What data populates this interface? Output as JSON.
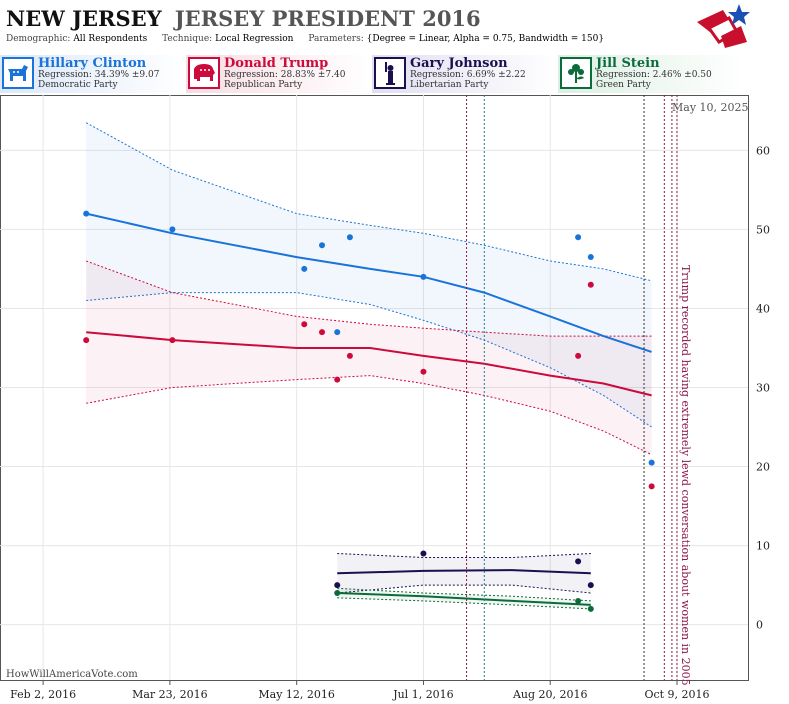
{
  "header": {
    "state": "NEW JERSEY",
    "race": "JERSEY PRESIDENT 2016",
    "params": [
      {
        "key": "Demographic:",
        "value": "All Respondents"
      },
      {
        "key": "Technique:",
        "value": "Local Regression"
      },
      {
        "key": "Parameters:",
        "value": "{Degree = Linear, Alpha = 0.75, Bandwidth = 150}"
      }
    ]
  },
  "date_stamp": "May 10, 2025",
  "watermark": "HowWillAmericaVote.com",
  "colors": {
    "clinton": "#1a73d9",
    "trump": "#cc0a3c",
    "johnson": "#1a1050",
    "stein": "#0b6b3a",
    "logo_red": "#c8102e",
    "logo_blue": "#1a4fb3"
  },
  "candidates": [
    {
      "name": "Hillary Clinton",
      "regression": "Regression: 34.39% ±9.07",
      "party": "Democratic Party",
      "icon": "donkey-icon",
      "color": "#1a73d9"
    },
    {
      "name": "Donald Trump",
      "regression": "Regression: 28.83% ±7.40",
      "party": "Republican Party",
      "icon": "elephant-icon",
      "color": "#cc0a3c"
    },
    {
      "name": "Gary Johnson",
      "regression": "Regression: 6.69% ±2.22",
      "party": "Libertarian Party",
      "icon": "liberty-icon",
      "color": "#1a1050"
    },
    {
      "name": "Jill Stein",
      "regression": "Regression: 2.46% ±0.50",
      "party": "Green Party",
      "icon": "flower-icon",
      "color": "#0b6b3a"
    }
  ],
  "chart_data": {
    "type": "scatter",
    "x_ticks": [
      "Feb 2, 2016",
      "Mar 23, 2016",
      "May 12, 2016",
      "Jul 1, 2016",
      "Aug 20, 2016",
      "Oct 9, 2016"
    ],
    "x_range": [
      "2016-01-16",
      "2016-11-06"
    ],
    "y_ticks": [
      0,
      10,
      20,
      30,
      40,
      50,
      60
    ],
    "y_range": [
      -7,
      67
    ],
    "grid": true,
    "annotation": "Trump recorded having extremely lewd conversation about women in 2005",
    "event_lines": [
      {
        "date": "2016-07-18",
        "style": "dotted",
        "color": "#8b1a4a"
      },
      {
        "date": "2016-07-25",
        "style": "dotted",
        "color": "#1a7d8b"
      },
      {
        "date": "2016-09-26",
        "style": "dotted",
        "color": "#333333"
      },
      {
        "date": "2016-10-04",
        "style": "dotted",
        "color": "#8b1a4a"
      },
      {
        "date": "2016-10-07",
        "style": "dotted",
        "color": "#8b1a4a"
      },
      {
        "date": "2016-10-09",
        "style": "dotted",
        "color": "#8b1a4a"
      }
    ],
    "series": [
      {
        "name": "Hillary Clinton",
        "color": "#1a73d9",
        "points": [
          [
            "2016-02-19",
            52
          ],
          [
            "2016-03-24",
            50
          ],
          [
            "2016-05-15",
            45
          ],
          [
            "2016-05-22",
            48
          ],
          [
            "2016-05-28",
            37
          ],
          [
            "2016-06-02",
            49
          ],
          [
            "2016-07-01",
            44
          ],
          [
            "2016-08-31",
            49
          ],
          [
            "2016-09-05",
            46.5
          ],
          [
            "2016-09-29",
            20.5
          ]
        ],
        "fit": [
          [
            "2016-02-19",
            52
          ],
          [
            "2016-03-24",
            49.5
          ],
          [
            "2016-05-12",
            46.5
          ],
          [
            "2016-06-10",
            45
          ],
          [
            "2016-07-01",
            44
          ],
          [
            "2016-07-25",
            42
          ],
          [
            "2016-08-20",
            39
          ],
          [
            "2016-09-10",
            36.5
          ],
          [
            "2016-09-29",
            34.5
          ]
        ],
        "upper": [
          [
            "2016-02-19",
            63.5
          ],
          [
            "2016-03-24",
            57.5
          ],
          [
            "2016-05-12",
            52
          ],
          [
            "2016-06-10",
            50.5
          ],
          [
            "2016-07-01",
            49.5
          ],
          [
            "2016-07-25",
            48
          ],
          [
            "2016-08-20",
            46
          ],
          [
            "2016-09-10",
            45
          ],
          [
            "2016-09-29",
            43.5
          ]
        ],
        "lower": [
          [
            "2016-02-19",
            41
          ],
          [
            "2016-03-24",
            42
          ],
          [
            "2016-05-12",
            42
          ],
          [
            "2016-06-10",
            40.5
          ],
          [
            "2016-07-01",
            38.5
          ],
          [
            "2016-07-25",
            36
          ],
          [
            "2016-08-20",
            32.5
          ],
          [
            "2016-09-10",
            29
          ],
          [
            "2016-09-29",
            25
          ]
        ]
      },
      {
        "name": "Donald Trump",
        "color": "#cc0a3c",
        "points": [
          [
            "2016-02-19",
            36
          ],
          [
            "2016-03-24",
            36
          ],
          [
            "2016-05-15",
            38
          ],
          [
            "2016-05-22",
            37
          ],
          [
            "2016-05-28",
            31
          ],
          [
            "2016-06-02",
            34
          ],
          [
            "2016-07-01",
            32
          ],
          [
            "2016-08-31",
            34
          ],
          [
            "2016-09-05",
            43
          ],
          [
            "2016-09-29",
            17.5
          ]
        ],
        "fit": [
          [
            "2016-02-19",
            37
          ],
          [
            "2016-03-24",
            36
          ],
          [
            "2016-05-12",
            35
          ],
          [
            "2016-06-10",
            35
          ],
          [
            "2016-07-01",
            34
          ],
          [
            "2016-07-25",
            33
          ],
          [
            "2016-08-20",
            31.5
          ],
          [
            "2016-09-10",
            30.5
          ],
          [
            "2016-09-29",
            29
          ]
        ],
        "upper": [
          [
            "2016-02-19",
            46
          ],
          [
            "2016-03-24",
            42
          ],
          [
            "2016-05-12",
            39
          ],
          [
            "2016-06-10",
            38
          ],
          [
            "2016-07-01",
            37.5
          ],
          [
            "2016-07-25",
            37
          ],
          [
            "2016-08-20",
            36.5
          ],
          [
            "2016-09-10",
            36.5
          ],
          [
            "2016-09-29",
            36.5
          ]
        ],
        "lower": [
          [
            "2016-02-19",
            28
          ],
          [
            "2016-03-24",
            30
          ],
          [
            "2016-05-12",
            31
          ],
          [
            "2016-06-10",
            31.5
          ],
          [
            "2016-07-01",
            30.5
          ],
          [
            "2016-07-25",
            29
          ],
          [
            "2016-08-20",
            27
          ],
          [
            "2016-09-10",
            24.5
          ],
          [
            "2016-09-29",
            21.5
          ]
        ]
      },
      {
        "name": "Gary Johnson",
        "color": "#1a1050",
        "points": [
          [
            "2016-05-28",
            5
          ],
          [
            "2016-07-01",
            9
          ],
          [
            "2016-08-31",
            8
          ],
          [
            "2016-09-05",
            5
          ]
        ],
        "fit": [
          [
            "2016-05-28",
            6.5
          ],
          [
            "2016-07-01",
            6.8
          ],
          [
            "2016-08-05",
            6.9
          ],
          [
            "2016-09-05",
            6.5
          ]
        ],
        "upper": [
          [
            "2016-05-28",
            9
          ],
          [
            "2016-07-01",
            8.5
          ],
          [
            "2016-08-05",
            8.5
          ],
          [
            "2016-09-05",
            9
          ]
        ],
        "lower": [
          [
            "2016-05-28",
            4
          ],
          [
            "2016-07-01",
            5
          ],
          [
            "2016-08-05",
            5
          ],
          [
            "2016-09-05",
            4
          ]
        ]
      },
      {
        "name": "Jill Stein",
        "color": "#0b6b3a",
        "points": [
          [
            "2016-05-28",
            4
          ],
          [
            "2016-08-31",
            3
          ],
          [
            "2016-09-05",
            2
          ]
        ],
        "fit": [
          [
            "2016-05-28",
            4
          ],
          [
            "2016-07-01",
            3.6
          ],
          [
            "2016-08-05",
            3
          ],
          [
            "2016-09-05",
            2.5
          ]
        ],
        "upper": [
          [
            "2016-05-28",
            4.6
          ],
          [
            "2016-07-01",
            4
          ],
          [
            "2016-08-05",
            3.6
          ],
          [
            "2016-09-05",
            3
          ]
        ],
        "lower": [
          [
            "2016-05-28",
            3.4
          ],
          [
            "2016-07-01",
            3
          ],
          [
            "2016-08-05",
            2.5
          ],
          [
            "2016-09-05",
            2
          ]
        ]
      }
    ]
  }
}
